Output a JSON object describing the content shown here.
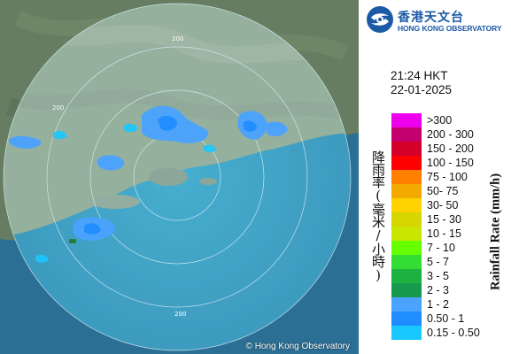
{
  "map": {
    "copyright": "© Hong Kong Observatory",
    "range_rings": [
      "200",
      "200",
      "200"
    ]
  },
  "header": {
    "logo_chinese": "香港天文台",
    "logo_english": "HONG KONG OBSERVATORY",
    "time": "21:24 HKT",
    "date": "22-01-2025"
  },
  "legend": {
    "axis_label_chinese": "降雨率(毫米/小時)",
    "axis_label_english": "Rainfall Rate (mm/h)",
    "items": [
      {
        "label": ">300",
        "color": "#ee00ee"
      },
      {
        "label": "200 - 300",
        "color": "#c4006f"
      },
      {
        "label": "150 - 200",
        "color": "#d5002a"
      },
      {
        "label": "100 - 150",
        "color": "#ff0000"
      },
      {
        "label": "75 - 100",
        "color": "#ff8000"
      },
      {
        "label": "50- 75",
        "color": "#f2aa00"
      },
      {
        "label": "30- 50",
        "color": "#ffd200"
      },
      {
        "label": "15 - 30",
        "color": "#d6d600"
      },
      {
        "label": "10 - 15",
        "color": "#c8e600"
      },
      {
        "label": "7 - 10",
        "color": "#66ff00"
      },
      {
        "label": "5 - 7",
        "color": "#33dd33"
      },
      {
        "label": "3 - 5",
        "color": "#1db240"
      },
      {
        "label": "2 - 3",
        "color": "#179a4e"
      },
      {
        "label": "1 - 2",
        "color": "#4aa3ff"
      },
      {
        "label": "0.50 - 1",
        "color": "#1f8cff"
      },
      {
        "label": "0.15 - 0.50",
        "color": "#19c8ff"
      }
    ]
  }
}
